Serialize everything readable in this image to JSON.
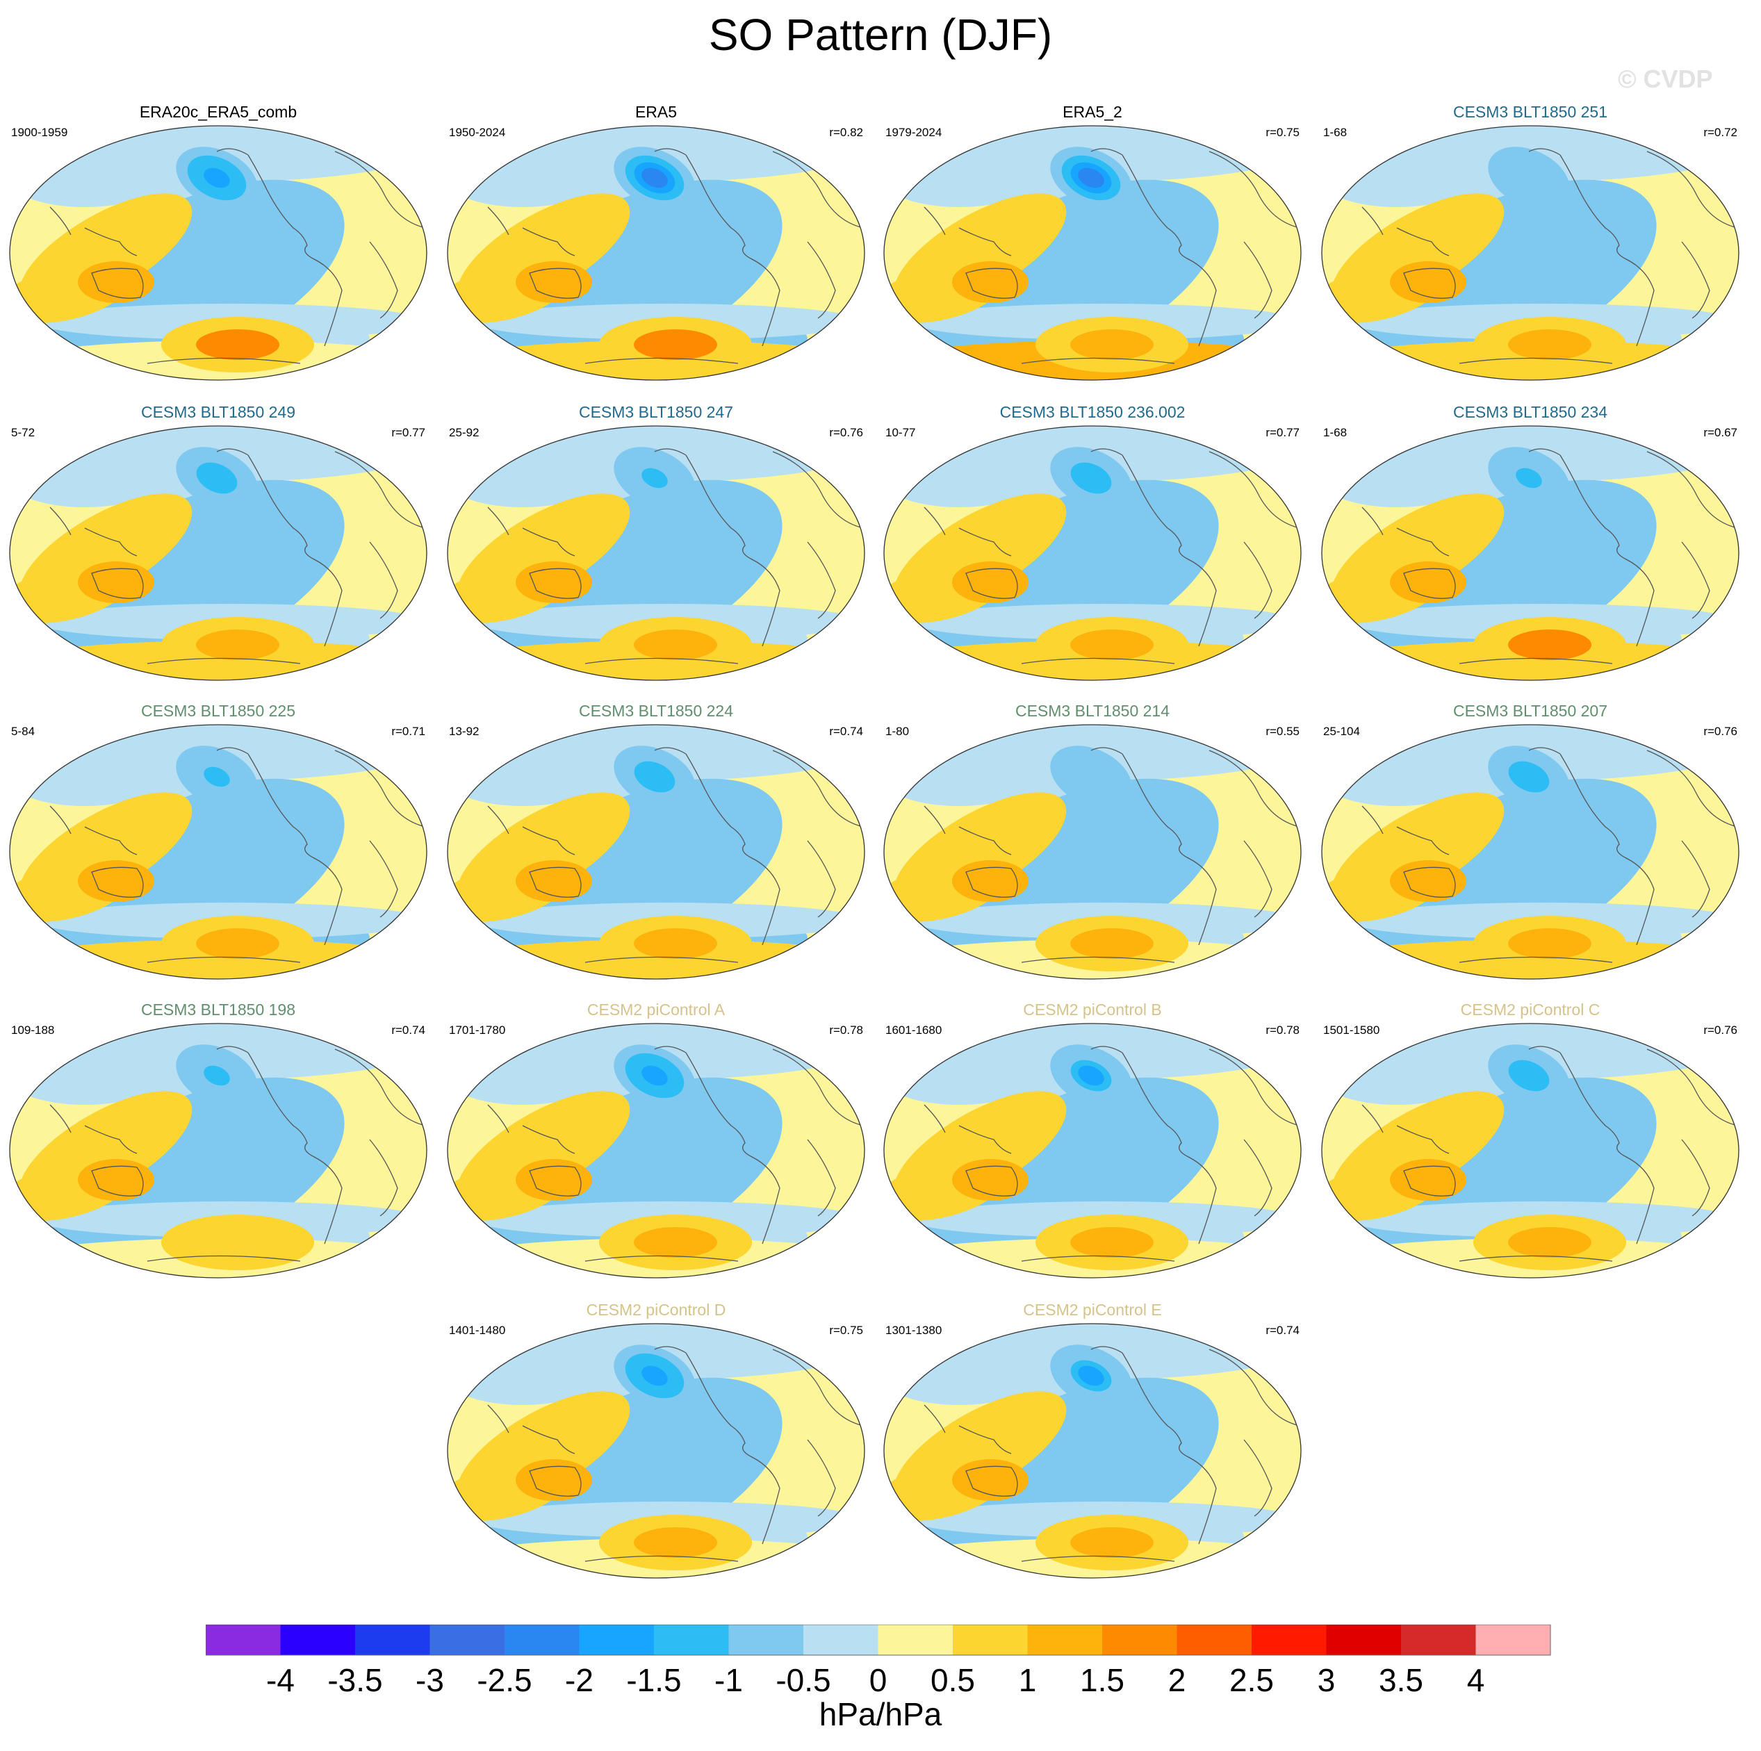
{
  "figure": {
    "title": "SO Pattern (DJF)",
    "watermark": "© CVDP"
  },
  "colors": {
    "title_colors": {
      "obs": "#000000",
      "cesm3_a": "#1f6a8e",
      "cesm3_b": "#5f8f6c",
      "cesm2": "#d6c38a"
    },
    "coast": "#555555"
  },
  "chart_data": {
    "type": "heatmap",
    "variable": "SO Pattern (DJF)",
    "units": "hPa/hPa",
    "colorbar": {
      "levels": [
        -4,
        -3.5,
        -3,
        -2.5,
        -2,
        -1.5,
        -1,
        -0.5,
        0,
        0.5,
        1,
        1.5,
        2,
        2.5,
        3,
        3.5,
        4
      ],
      "labels": [
        "-4",
        "-3.5",
        "-3",
        "-2.5",
        "-2",
        "-1.5",
        "-1",
        "-0.5",
        "0",
        "0.5",
        "1",
        "1.5",
        "2",
        "2.5",
        "3",
        "3.5",
        "4"
      ],
      "colors": [
        "#8a2be2",
        "#2b00ff",
        "#1e3cef",
        "#3a6ee3",
        "#2a86f0",
        "#17a5ff",
        "#2bbdf3",
        "#7fc8ef",
        "#b8dff2",
        "#fcf59a",
        "#fdd530",
        "#fdb20c",
        "#fd8a00",
        "#ff5e00",
        "#ff1a00",
        "#e10000",
        "#d42a2a",
        "#ffafb2"
      ]
    },
    "panels": [
      {
        "title": "ERA20c_ERA5_comb",
        "years": "1900-1959",
        "r": "",
        "group": "obs",
        "features": {
          "npac": -2.0,
          "seasia": 1.0,
          "sp": 1.5,
          "pac_neg": -0.6,
          "atl_neg": -0.5,
          "ant": 0.4
        }
      },
      {
        "title": "ERA5",
        "years": "1950-2024",
        "r": "r=0.82",
        "group": "obs",
        "features": {
          "npac": -2.2,
          "seasia": 1.1,
          "sp": 1.6,
          "pac_neg": -0.6,
          "atl_neg": -0.6,
          "ant": 0.8
        }
      },
      {
        "title": "ERA5_2",
        "years": "1979-2024",
        "r": "r=0.75",
        "group": "obs",
        "features": {
          "npac": -2.3,
          "seasia": 1.2,
          "sp": 1.4,
          "pac_neg": -0.6,
          "atl_neg": -0.6,
          "ant": 1.0
        }
      },
      {
        "title": "CESM3 BLT1850 251",
        "years": "1-68",
        "r": "r=0.72",
        "group": "cesm3_a",
        "features": {
          "npac": -0.9,
          "seasia": 1.0,
          "sp": 1.3,
          "pac_neg": -0.6,
          "atl_neg": -0.5,
          "ant": 0.5
        }
      },
      {
        "title": "CESM3 BLT1850 249",
        "years": "5-72",
        "r": "r=0.77",
        "group": "cesm3_a",
        "features": {
          "npac": -1.4,
          "seasia": 1.0,
          "sp": 1.2,
          "pac_neg": -0.7,
          "atl_neg": -0.5,
          "ant": 0.6
        }
      },
      {
        "title": "CESM3 BLT1850 247",
        "years": "25-92",
        "r": "r=0.76",
        "group": "cesm3_a",
        "features": {
          "npac": -1.2,
          "seasia": 1.0,
          "sp": 1.3,
          "pac_neg": -0.7,
          "atl_neg": -0.5,
          "ant": 0.6
        }
      },
      {
        "title": "CESM3 BLT1850 236.002",
        "years": "10-77",
        "r": "r=0.77",
        "group": "cesm3_a",
        "features": {
          "npac": -1.5,
          "seasia": 1.0,
          "sp": 1.2,
          "pac_neg": -0.6,
          "atl_neg": -0.5,
          "ant": 0.6
        }
      },
      {
        "title": "CESM3 BLT1850 234",
        "years": "1-68",
        "r": "r=0.67",
        "group": "cesm3_a",
        "features": {
          "npac": -1.3,
          "seasia": 1.0,
          "sp": 1.6,
          "pac_neg": -0.6,
          "atl_neg": -0.5,
          "ant": 0.8
        }
      },
      {
        "title": "CESM3 BLT1850 225",
        "years": "5-84",
        "r": "r=0.71",
        "group": "cesm3_b",
        "features": {
          "npac": -1.3,
          "seasia": 1.0,
          "sp": 1.2,
          "pac_neg": -0.7,
          "atl_neg": -0.6,
          "ant": 0.6
        }
      },
      {
        "title": "CESM3 BLT1850 224",
        "years": "13-92",
        "r": "r=0.74",
        "group": "cesm3_b",
        "features": {
          "npac": -1.4,
          "seasia": 1.0,
          "sp": 1.2,
          "pac_neg": -0.7,
          "atl_neg": -0.6,
          "ant": 0.6
        }
      },
      {
        "title": "CESM3 BLT1850 214",
        "years": "1-80",
        "r": "r=0.55",
        "group": "cesm3_b",
        "features": {
          "npac": -0.7,
          "seasia": 1.1,
          "sp": 1.4,
          "pac_neg": -0.8,
          "atl_neg": -0.5,
          "ant": 0.4
        }
      },
      {
        "title": "CESM3 BLT1850 207",
        "years": "25-104",
        "r": "r=0.76",
        "group": "cesm3_b",
        "features": {
          "npac": -1.4,
          "seasia": 1.0,
          "sp": 1.3,
          "pac_neg": -0.6,
          "atl_neg": -0.5,
          "ant": 0.6
        }
      },
      {
        "title": "CESM3 BLT1850 198",
        "years": "109-188",
        "r": "r=0.74",
        "group": "cesm3_b",
        "features": {
          "npac": -1.3,
          "seasia": 1.0,
          "sp": 0.9,
          "pac_neg": -0.7,
          "atl_neg": -0.5,
          "ant": 0.3
        }
      },
      {
        "title": "CESM2 piControl A",
        "years": "1701-1780",
        "r": "r=0.78",
        "group": "cesm2",
        "features": {
          "npac": -1.9,
          "seasia": 1.0,
          "sp": 1.3,
          "pac_neg": -0.6,
          "atl_neg": -0.5,
          "ant": 0.2
        }
      },
      {
        "title": "CESM2 piControl B",
        "years": "1601-1680",
        "r": "r=0.78",
        "group": "cesm2",
        "features": {
          "npac": -1.6,
          "seasia": 1.0,
          "sp": 1.2,
          "pac_neg": -0.7,
          "atl_neg": -0.5,
          "ant": 0.3
        }
      },
      {
        "title": "CESM2 piControl C",
        "years": "1501-1580",
        "r": "r=0.76",
        "group": "cesm2",
        "features": {
          "npac": -1.5,
          "seasia": 1.0,
          "sp": 1.1,
          "pac_neg": -0.6,
          "atl_neg": -0.5,
          "ant": 0.3
        }
      },
      {
        "title": "CESM2 piControl D",
        "years": "1401-1480",
        "r": "r=0.75",
        "group": "cesm2",
        "features": {
          "npac": -1.9,
          "seasia": 1.0,
          "sp": 1.2,
          "pac_neg": -0.6,
          "atl_neg": -0.5,
          "ant": 0.3
        }
      },
      {
        "title": "CESM2 piControl E",
        "years": "1301-1380",
        "r": "r=0.74",
        "group": "cesm2",
        "features": {
          "npac": -1.6,
          "seasia": 1.0,
          "sp": 1.2,
          "pac_neg": -0.6,
          "atl_neg": -0.5,
          "ant": 0.3
        }
      }
    ]
  }
}
